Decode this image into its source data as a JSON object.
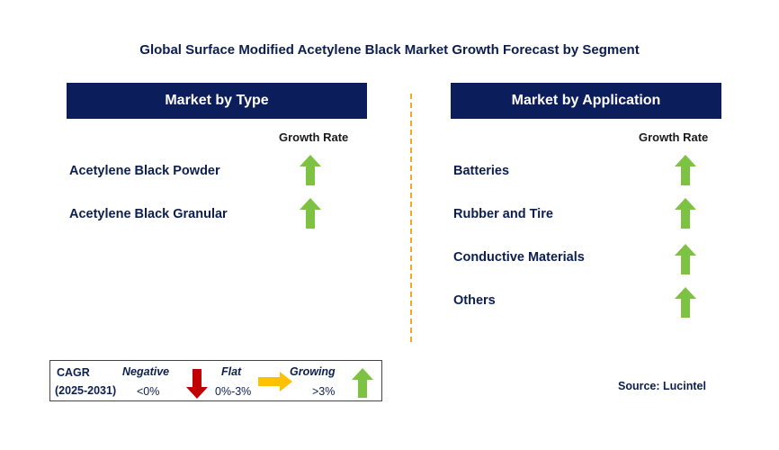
{
  "title": "Global Surface Modified Acetylene Black Market Growth Forecast by Segment",
  "left_panel": {
    "header": "Market by Type",
    "growth_label": "Growth Rate",
    "items": [
      {
        "label": "Acetylene Black Powder",
        "trend": "growing"
      },
      {
        "label": "Acetylene Black Granular",
        "trend": "growing"
      }
    ]
  },
  "right_panel": {
    "header": "Market by Application",
    "growth_label": "Growth Rate",
    "items": [
      {
        "label": "Batteries",
        "trend": "growing"
      },
      {
        "label": "Rubber and Tire",
        "trend": "growing"
      },
      {
        "label": "Conductive Materials",
        "trend": "growing"
      },
      {
        "label": "Others",
        "trend": "growing"
      }
    ]
  },
  "legend": {
    "cagr": "CAGR",
    "period": "(2025-2031)",
    "negative_label": "Negative",
    "negative_range": "<0%",
    "flat_label": "Flat",
    "flat_range": "0%-3%",
    "growing_label": "Growing",
    "growing_range": ">3%"
  },
  "source": "Source: Lucintel",
  "colors": {
    "header_bg": "#0b1e5b",
    "text": "#0b1e4e",
    "divider": "#f5a623",
    "up_arrow": "#7dc242",
    "down_arrow": "#c00000",
    "flat_arrow": "#ffc000"
  }
}
